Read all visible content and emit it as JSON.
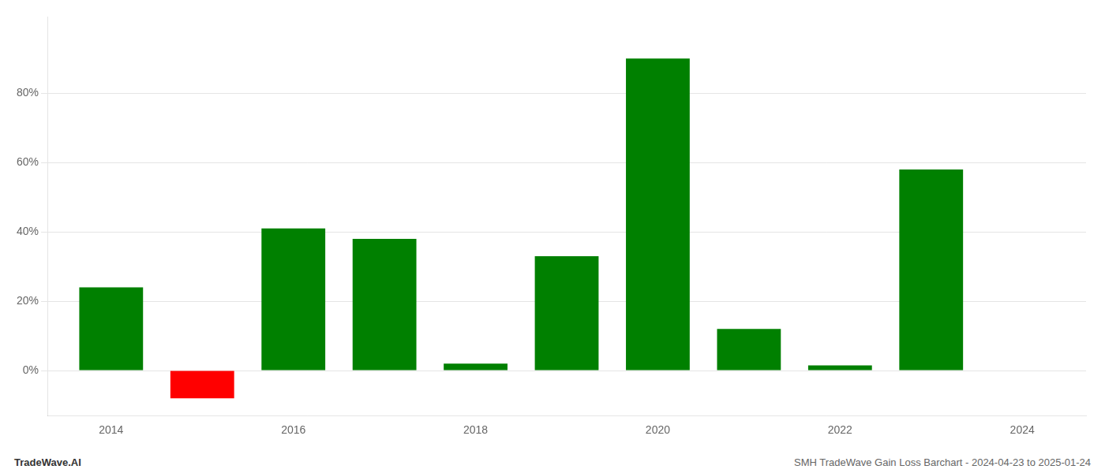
{
  "chart_data": {
    "type": "bar",
    "x": [
      2014,
      2015,
      2016,
      2017,
      2018,
      2019,
      2020,
      2021,
      2022,
      2023
    ],
    "values": [
      0.24,
      -0.08,
      0.41,
      0.38,
      0.02,
      0.33,
      0.9,
      0.12,
      0.015,
      0.58
    ],
    "colors": [
      "#008000",
      "#ff0000",
      "#008000",
      "#008000",
      "#008000",
      "#008000",
      "#008000",
      "#008000",
      "#008000",
      "#008000"
    ],
    "xlim": [
      2013.3,
      2024.7
    ],
    "xticks": [
      2014,
      2016,
      2018,
      2020,
      2022,
      2024
    ],
    "ylim": [
      -0.13,
      1.02
    ],
    "yticks": [
      {
        "value": 0.0,
        "label": "0%"
      },
      {
        "value": 0.2,
        "label": "20%"
      },
      {
        "value": 0.4,
        "label": "40%"
      },
      {
        "value": 0.6,
        "label": "60%"
      },
      {
        "value": 0.8,
        "label": "80%"
      }
    ],
    "grid": "y",
    "annotations": [
      "TradeWave.AI",
      "SMH TradeWave Gain Loss Barchart - 2024-04-23 to 2025-01-24"
    ]
  }
}
